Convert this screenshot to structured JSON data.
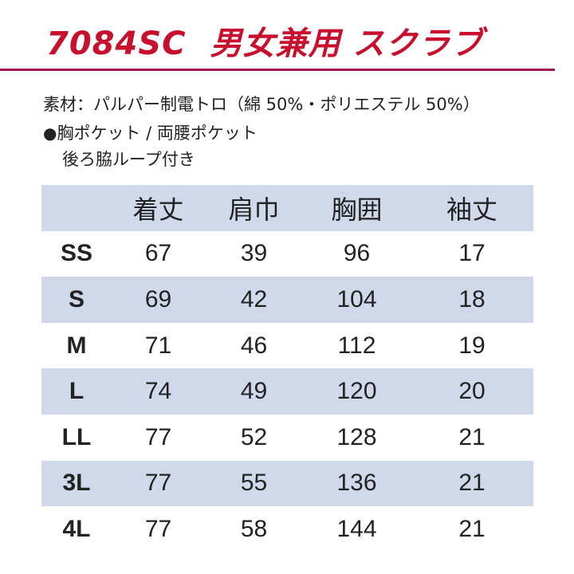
{
  "header": {
    "code": "7084SC",
    "name": "男女兼用 スクラブ",
    "accent_color": "#c8102e",
    "rule_color": "#a3135c"
  },
  "details": {
    "material": "素材：パルパー制電トロ（綿 50%・ポリエステル 50%）",
    "bullet": "●",
    "feature_line1": "胸ポケット / 両腰ポケット",
    "feature_line2": "後ろ脇ループ付き"
  },
  "size_table": {
    "shade_color": "#cfd9ea",
    "columns": [
      "",
      "着丈",
      "肩巾",
      "胸囲",
      "袖丈"
    ],
    "rows": [
      {
        "size": "SS",
        "values": [
          "67",
          "39",
          "96",
          "17"
        ]
      },
      {
        "size": "S",
        "values": [
          "69",
          "42",
          "104",
          "18"
        ]
      },
      {
        "size": "M",
        "values": [
          "71",
          "46",
          "112",
          "19"
        ]
      },
      {
        "size": "L",
        "values": [
          "74",
          "49",
          "120",
          "20"
        ]
      },
      {
        "size": "LL",
        "values": [
          "77",
          "52",
          "128",
          "21"
        ]
      },
      {
        "size": "3L",
        "values": [
          "77",
          "55",
          "136",
          "21"
        ]
      },
      {
        "size": "4L",
        "values": [
          "77",
          "58",
          "144",
          "21"
        ]
      }
    ]
  }
}
